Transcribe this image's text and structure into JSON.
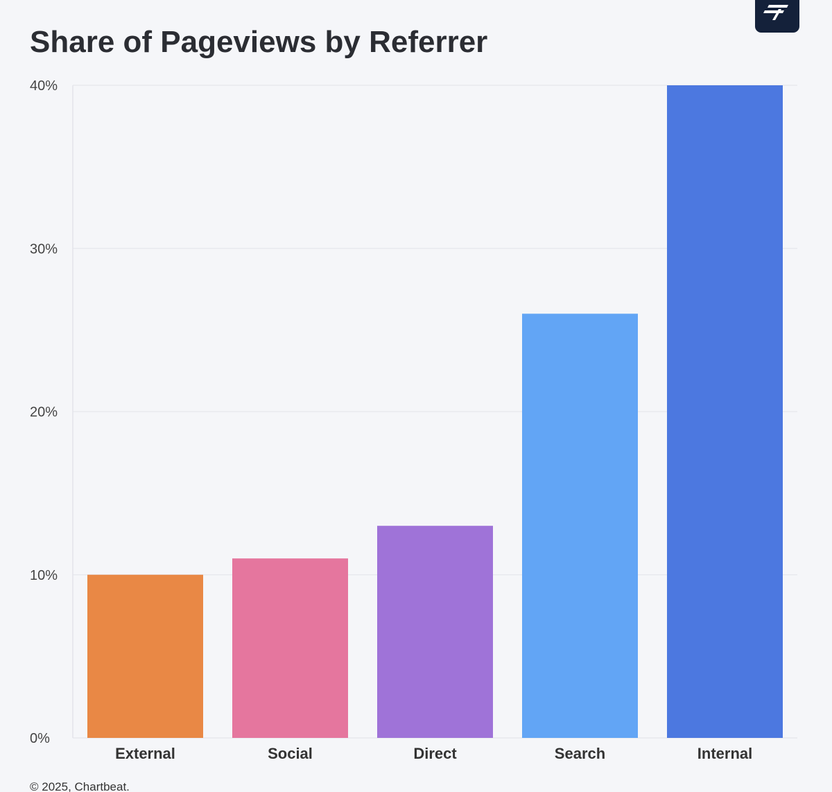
{
  "chart_data": {
    "type": "bar",
    "title": "Share of Pageviews by Referrer",
    "categories": [
      "External",
      "Social",
      "Direct",
      "Search",
      "Internal"
    ],
    "values": [
      10,
      11,
      13,
      26,
      40
    ],
    "colors": [
      "#e98845",
      "#e5769e",
      "#9f73d8",
      "#62a5f5",
      "#4c78e0"
    ],
    "ylim": [
      0,
      40
    ],
    "yticks": [
      0,
      10,
      20,
      30,
      40
    ],
    "ytick_labels": [
      "0%",
      "10%",
      "20%",
      "30%",
      "40%"
    ],
    "grid": true,
    "xlabel": "",
    "ylabel": ""
  },
  "footer": {
    "copyright": "© 2025, Chartbeat."
  },
  "brand": {
    "logo_icon": "chartbeat-logo-icon",
    "logo_bg": "#14213a"
  }
}
